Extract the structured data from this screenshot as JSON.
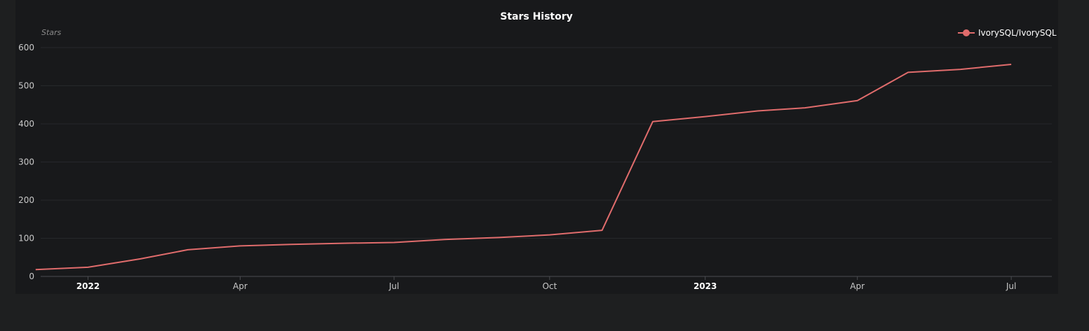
{
  "chart_data": {
    "type": "line",
    "title": "Stars History",
    "ylabel": "Stars",
    "xlabel": "",
    "ylim": [
      0,
      600
    ],
    "yticks": [
      0,
      100,
      200,
      300,
      400,
      500,
      600
    ],
    "xlim": [
      "2021-12-04",
      "2023-07-25"
    ],
    "xticks": [
      {
        "date": "2022-01-01",
        "label": "2022",
        "major": true
      },
      {
        "date": "2022-04-01",
        "label": "Apr",
        "major": false
      },
      {
        "date": "2022-07-01",
        "label": "Jul",
        "major": false
      },
      {
        "date": "2022-10-01",
        "label": "Oct",
        "major": false
      },
      {
        "date": "2023-01-01",
        "label": "2023",
        "major": true
      },
      {
        "date": "2023-04-01",
        "label": "Apr",
        "major": false
      },
      {
        "date": "2023-07-01",
        "label": "Jul",
        "major": false
      }
    ],
    "legend_position": "top-right",
    "grid": true,
    "series": [
      {
        "name": "IvorySQL/IvorySQL",
        "color": "#e06c6c",
        "points": [
          {
            "x": "2021-12-01",
            "y": 18
          },
          {
            "x": "2022-01-01",
            "y": 24
          },
          {
            "x": "2022-02-01",
            "y": 46
          },
          {
            "x": "2022-03-01",
            "y": 70
          },
          {
            "x": "2022-04-01",
            "y": 80
          },
          {
            "x": "2022-05-01",
            "y": 84
          },
          {
            "x": "2022-06-01",
            "y": 87
          },
          {
            "x": "2022-07-01",
            "y": 89
          },
          {
            "x": "2022-08-01",
            "y": 97
          },
          {
            "x": "2022-09-01",
            "y": 102
          },
          {
            "x": "2022-10-01",
            "y": 109
          },
          {
            "x": "2022-11-01",
            "y": 121
          },
          {
            "x": "2022-12-01",
            "y": 406
          },
          {
            "x": "2023-01-01",
            "y": 419
          },
          {
            "x": "2023-02-01",
            "y": 434
          },
          {
            "x": "2023-03-01",
            "y": 442
          },
          {
            "x": "2023-04-01",
            "y": 461
          },
          {
            "x": "2023-05-01",
            "y": 535
          },
          {
            "x": "2023-06-01",
            "y": 543
          },
          {
            "x": "2023-07-01",
            "y": 556
          }
        ]
      }
    ]
  }
}
